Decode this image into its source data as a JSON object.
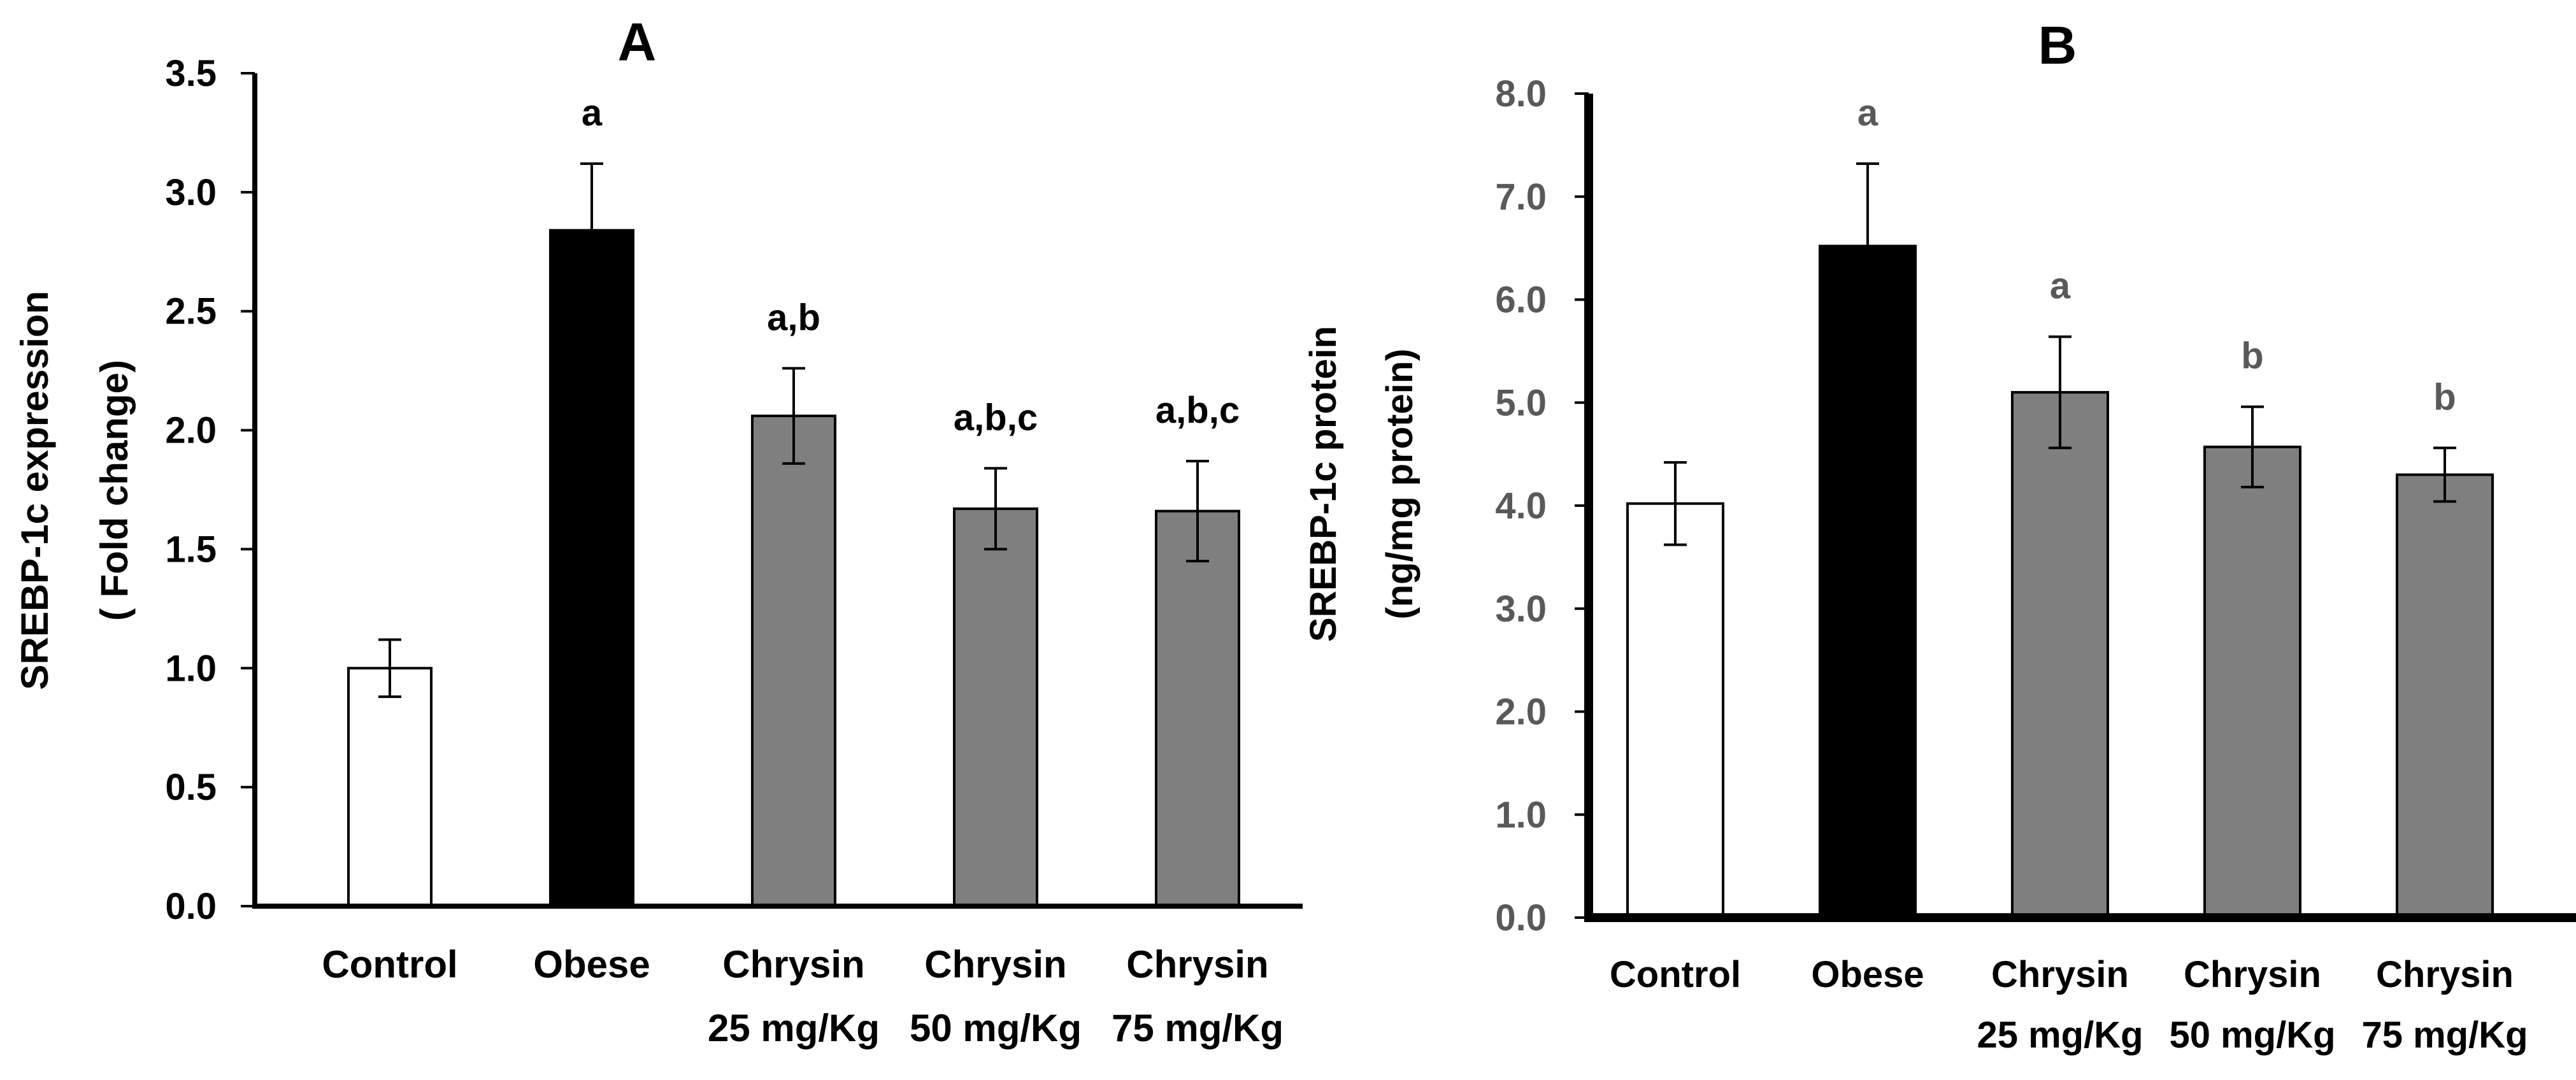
{
  "chart_data": [
    {
      "type": "bar",
      "panel_label": "A",
      "ylabel_line1": "SREBP-1c  expression",
      "ylabel_line2": "( Fold change)",
      "xlabel": "",
      "ylim": [
        0,
        3.5
      ],
      "yticks": [
        "0.0",
        "0.5",
        "1.0",
        "1.5",
        "2.0",
        "2.5",
        "3.0",
        "3.5"
      ],
      "categories": [
        {
          "line1": "Control",
          "line2": ""
        },
        {
          "line1": "Obese",
          "line2": ""
        },
        {
          "line1": "Chrysin",
          "line2": "25 mg/Kg"
        },
        {
          "line1": "Chrysin",
          "line2": "50 mg/Kg"
        },
        {
          "line1": "Chrysin",
          "line2": "75 mg/Kg"
        }
      ],
      "values": [
        1.0,
        2.84,
        2.06,
        1.67,
        1.66
      ],
      "errors": [
        0.12,
        0.28,
        0.2,
        0.17,
        0.21
      ],
      "significance": [
        "",
        "a",
        "a,b",
        "a,b,c",
        "a,b,c"
      ],
      "bar_colors": [
        "#ffffff",
        "#000000",
        "#7f7f7f",
        "#7f7f7f",
        "#7f7f7f"
      ],
      "label_color": "#000000",
      "axis_color": "#000000",
      "grid": false
    },
    {
      "type": "bar",
      "panel_label": "B",
      "ylabel_line1": "SREBP-1c protein",
      "ylabel_line2": "(ng/mg protein)",
      "xlabel": "",
      "ylim": [
        0,
        8.0
      ],
      "yticks": [
        "0.0",
        "1.0",
        "2.0",
        "3.0",
        "4.0",
        "5.0",
        "6.0",
        "7.0",
        "8.0"
      ],
      "categories": [
        {
          "line1": "Control",
          "line2": ""
        },
        {
          "line1": "Obese",
          "line2": ""
        },
        {
          "line1": "Chrysin",
          "line2": "25 mg/Kg"
        },
        {
          "line1": "Chrysin",
          "line2": "50 mg/Kg"
        },
        {
          "line1": "Chrysin",
          "line2": "75 mg/Kg"
        }
      ],
      "values": [
        4.02,
        6.52,
        5.1,
        4.57,
        4.3
      ],
      "errors": [
        0.4,
        0.8,
        0.54,
        0.39,
        0.26
      ],
      "significance": [
        "",
        "a",
        "a",
        "b",
        "b"
      ],
      "bar_colors": [
        "#ffffff",
        "#000000",
        "#7f7f7f",
        "#7f7f7f",
        "#7f7f7f"
      ],
      "label_color": "#595959",
      "axis_color": "#000000",
      "grid": false
    }
  ]
}
